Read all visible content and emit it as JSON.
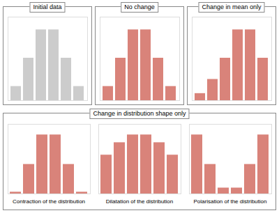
{
  "chart_data": [
    {
      "type": "bar",
      "title": "Initial data",
      "categories": [
        null,
        null,
        null,
        null,
        null,
        null
      ],
      "values": [
        1,
        3,
        5,
        5,
        3,
        1
      ],
      "color": "#cccccc",
      "ylim": [
        0,
        5.9
      ],
      "tick_labels": false
    },
    {
      "type": "bar",
      "title": "No change",
      "categories": [
        null,
        null,
        null,
        null,
        null,
        null
      ],
      "values": [
        1,
        3,
        5,
        5,
        3,
        1
      ],
      "color": "#d9837a",
      "ylim": [
        0,
        5.9
      ],
      "tick_labels": false
    },
    {
      "type": "bar",
      "title": "Change in mean only",
      "categories": [
        null,
        null,
        null,
        null,
        null,
        null
      ],
      "values": [
        0.5,
        1.5,
        3,
        5,
        5,
        3
      ],
      "color": "#d9837a",
      "ylim": [
        0,
        5.9
      ],
      "tick_labels": false
    },
    {
      "type": "bar",
      "title": "Contraction of the distribution",
      "annotations": [
        "Change in distribution shape only"
      ],
      "categories": [
        null,
        null,
        null,
        null,
        null,
        null
      ],
      "values": [
        0.15,
        2.5,
        5,
        5,
        2.5,
        0.15
      ],
      "color": "#d9837a",
      "ylim": [
        0,
        5.9
      ],
      "tick_labels": false
    },
    {
      "type": "bar",
      "title": "Dilatation of the distribution",
      "categories": [
        null,
        null,
        null,
        null,
        null,
        null
      ],
      "values": [
        2.5,
        3.3,
        3.8,
        3.8,
        3.3,
        2.5
      ],
      "color": "#d9837a",
      "ylim": [
        0,
        4.484
      ],
      "tick_labels": false
    },
    {
      "type": "bar",
      "title": "Polarisation of the distribution",
      "categories": [
        null,
        null,
        null,
        null,
        null,
        null
      ],
      "values": [
        5,
        2.5,
        0.5,
        0.5,
        2.5,
        5
      ],
      "color": "#d9837a",
      "ylim": [
        0,
        5.9
      ],
      "tick_labels": false
    }
  ]
}
